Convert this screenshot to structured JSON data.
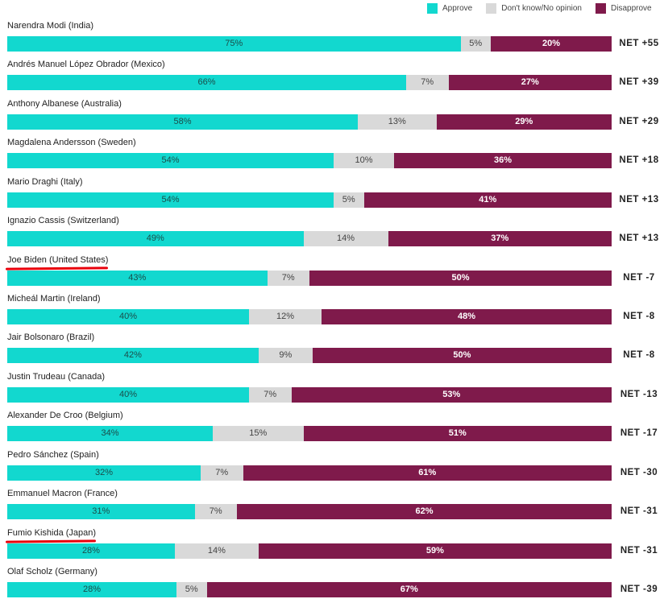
{
  "colors": {
    "approve": "#12d8cf",
    "neutral": "#d9d9d9",
    "disapprove": "#7f1a4b",
    "highlight": "#e8000b"
  },
  "legend": [
    {
      "label": "Approve",
      "key": "approve"
    },
    {
      "label": "Don't know/No opinion",
      "key": "neutral"
    },
    {
      "label": "Disapprove",
      "key": "disapprove"
    }
  ],
  "chart_data": {
    "type": "bar",
    "orientation": "horizontal",
    "stacked": true,
    "unit": "%",
    "series_names": [
      "Approve",
      "Don't know/No opinion",
      "Disapprove"
    ],
    "rows": [
      {
        "name": "Narendra Modi",
        "country": "(India)",
        "approve": 75,
        "neutral": 5,
        "disapprove": 20,
        "approve_label": "75%",
        "neutral_label": "5%",
        "disapprove_label": "20%",
        "net": "NET +55",
        "highlight": false
      },
      {
        "name": "Andrés Manuel López Obrador",
        "country": "(Mexico)",
        "approve": 66,
        "neutral": 7,
        "disapprove": 27,
        "approve_label": "66%",
        "neutral_label": "7%",
        "disapprove_label": "27%",
        "net": "NET +39",
        "highlight": false
      },
      {
        "name": "Anthony Albanese",
        "country": "(Australia)",
        "approve": 58,
        "neutral": 13,
        "disapprove": 29,
        "approve_label": "58%",
        "neutral_label": "13%",
        "disapprove_label": "29%",
        "net": "NET +29",
        "highlight": false
      },
      {
        "name": "Magdalena Andersson",
        "country": "(Sweden)",
        "approve": 54,
        "neutral": 10,
        "disapprove": 36,
        "approve_label": "54%",
        "neutral_label": "10%",
        "disapprove_label": "36%",
        "net": "NET +18",
        "highlight": false
      },
      {
        "name": "Mario Draghi",
        "country": "(Italy)",
        "approve": 54,
        "neutral": 5,
        "disapprove": 41,
        "approve_label": "54%",
        "neutral_label": "5%",
        "disapprove_label": "41%",
        "net": "NET +13",
        "highlight": false
      },
      {
        "name": "Ignazio Cassis",
        "country": "(Switzerland)",
        "approve": 49,
        "neutral": 14,
        "disapprove": 37,
        "approve_label": "49%",
        "neutral_label": "14%",
        "disapprove_label": "37%",
        "net": "NET +13",
        "highlight": false
      },
      {
        "name": "Joe Biden",
        "country": "(United States)",
        "approve": 43,
        "neutral": 7,
        "disapprove": 50,
        "approve_label": "43%",
        "neutral_label": "7%",
        "disapprove_label": "50%",
        "net": "NET -7",
        "highlight": true
      },
      {
        "name": "Micheál Martin",
        "country": "(Ireland)",
        "approve": 40,
        "neutral": 12,
        "disapprove": 48,
        "approve_label": "40%",
        "neutral_label": "12%",
        "disapprove_label": "48%",
        "net": "NET -8",
        "highlight": false
      },
      {
        "name": "Jair Bolsonaro",
        "country": "(Brazil)",
        "approve": 42,
        "neutral": 9,
        "disapprove": 50,
        "approve_label": "42%",
        "neutral_label": "9%",
        "disapprove_label": "50%",
        "net": "NET -8",
        "highlight": false
      },
      {
        "name": "Justin Trudeau",
        "country": "(Canada)",
        "approve": 40,
        "neutral": 7,
        "disapprove": 53,
        "approve_label": "40%",
        "neutral_label": "7%",
        "disapprove_label": "53%",
        "net": "NET -13",
        "highlight": false
      },
      {
        "name": "Alexander De Croo",
        "country": "(Belgium)",
        "approve": 34,
        "neutral": 15,
        "disapprove": 51,
        "approve_label": "34%",
        "neutral_label": "15%",
        "disapprove_label": "51%",
        "net": "NET -17",
        "highlight": false
      },
      {
        "name": "Pedro Sánchez",
        "country": "(Spain)",
        "approve": 32,
        "neutral": 7,
        "disapprove": 61,
        "approve_label": "32%",
        "neutral_label": "7%",
        "disapprove_label": "61%",
        "net": "NET -30",
        "highlight": false
      },
      {
        "name": "Emmanuel Macron",
        "country": "(France)",
        "approve": 31,
        "neutral": 7,
        "disapprove": 62,
        "approve_label": "31%",
        "neutral_label": "7%",
        "disapprove_label": "62%",
        "net": "NET -31",
        "highlight": false
      },
      {
        "name": "Fumio Kishida",
        "country": "(Japan)",
        "approve": 28,
        "neutral": 14,
        "disapprove": 59,
        "approve_label": "28%",
        "neutral_label": "14%",
        "disapprove_label": "59%",
        "net": "NET -31",
        "highlight": true
      },
      {
        "name": "Olaf Scholz",
        "country": "(Germany)",
        "approve": 28,
        "neutral": 5,
        "disapprove": 67,
        "approve_label": "28%",
        "neutral_label": "5%",
        "disapprove_label": "67%",
        "net": "NET -39",
        "highlight": false
      }
    ]
  }
}
